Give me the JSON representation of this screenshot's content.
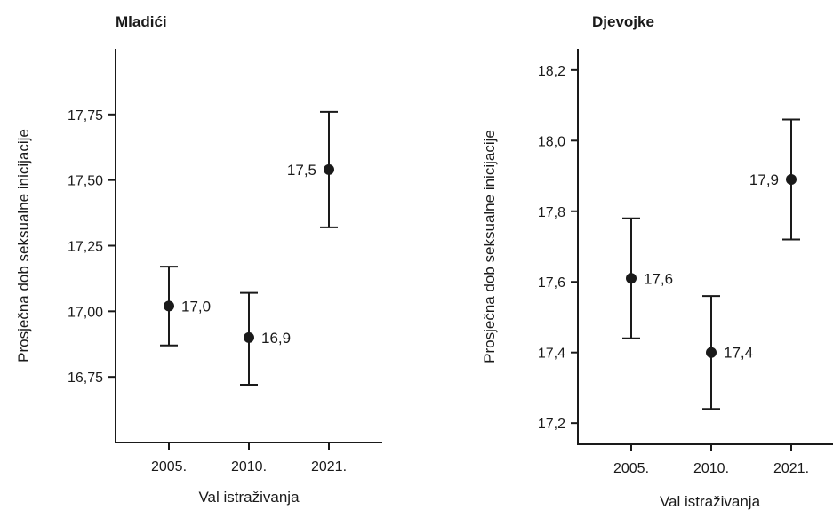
{
  "chart_data": [
    {
      "type": "scatter",
      "title": "Mladići",
      "xlabel": "Val istraživanja",
      "ylabel": "Prosječna dob seksualne inicijacije",
      "categories": [
        "2005.",
        "2010.",
        "2021."
      ],
      "values": [
        17.02,
        16.9,
        17.54
      ],
      "error_low": [
        16.87,
        16.72,
        17.32
      ],
      "error_high": [
        17.17,
        17.07,
        17.76
      ],
      "data_labels": [
        "17,0",
        "16,9",
        "17,5"
      ],
      "label_side": [
        "right",
        "right",
        "left"
      ],
      "ylim": [
        16.5,
        18.0
      ],
      "yticks": [
        16.75,
        17.0,
        17.25,
        17.5,
        17.75
      ],
      "ytick_labels": [
        "16,75",
        "17,00",
        "17,25",
        "17,50",
        "17,75"
      ],
      "grid": false
    },
    {
      "type": "scatter",
      "title": "Djevojke",
      "xlabel": "Val istraživanja",
      "ylabel": "Prosječna dob seksualne inicijacije",
      "categories": [
        "2005.",
        "2010.",
        "2021."
      ],
      "values": [
        17.61,
        17.4,
        17.89
      ],
      "error_low": [
        17.44,
        17.24,
        17.72
      ],
      "error_high": [
        17.78,
        17.56,
        18.06
      ],
      "data_labels": [
        "17,6",
        "17,4",
        "17,9"
      ],
      "label_side": [
        "right",
        "right",
        "left"
      ],
      "ylim": [
        17.14,
        18.26
      ],
      "yticks": [
        17.2,
        17.4,
        17.6,
        17.8,
        18.0,
        18.2
      ],
      "ytick_labels": [
        "17,2",
        "17,4",
        "17,6",
        "17,8",
        "18,0",
        "18,2"
      ],
      "grid": false
    }
  ]
}
